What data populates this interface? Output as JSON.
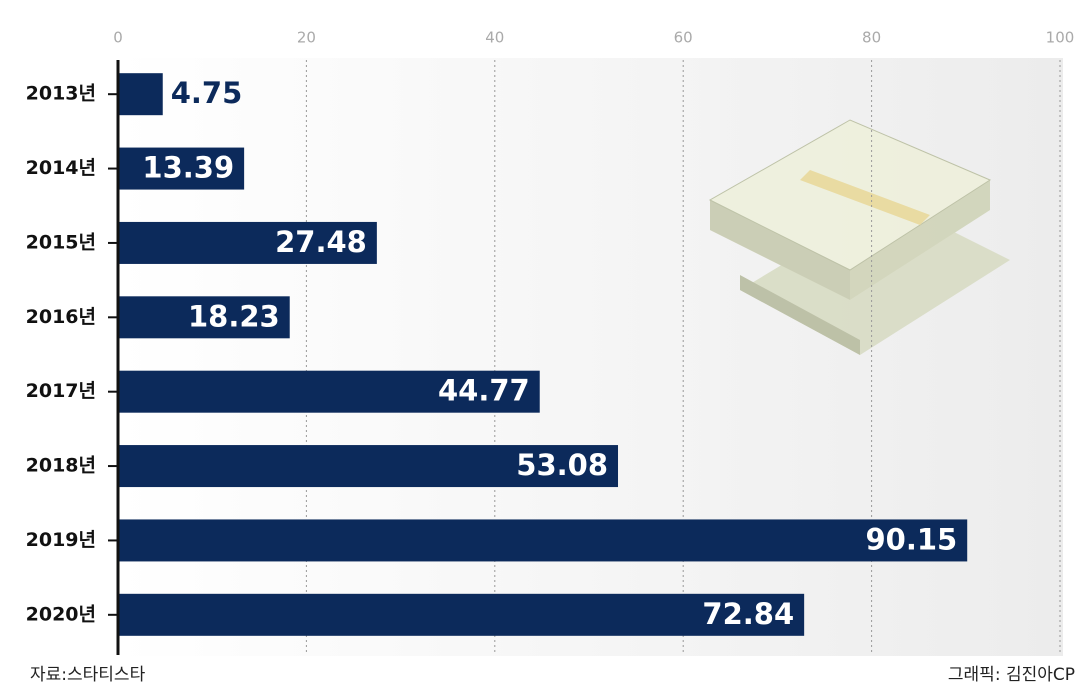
{
  "chart_data": {
    "type": "barh",
    "categories": [
      "2013년",
      "2014년",
      "2015년",
      "2016년",
      "2017년",
      "2018년",
      "2019년",
      "2020년"
    ],
    "values": [
      4.75,
      13.39,
      27.48,
      18.23,
      44.77,
      53.08,
      90.15,
      72.84
    ],
    "color": "#0c2a5b",
    "xlim": [
      0,
      100
    ],
    "xticks": [
      0,
      20,
      40,
      60,
      80,
      100
    ],
    "grid": true,
    "source": "자료:스타티스타",
    "credit": "그래픽: 김진아CP"
  }
}
